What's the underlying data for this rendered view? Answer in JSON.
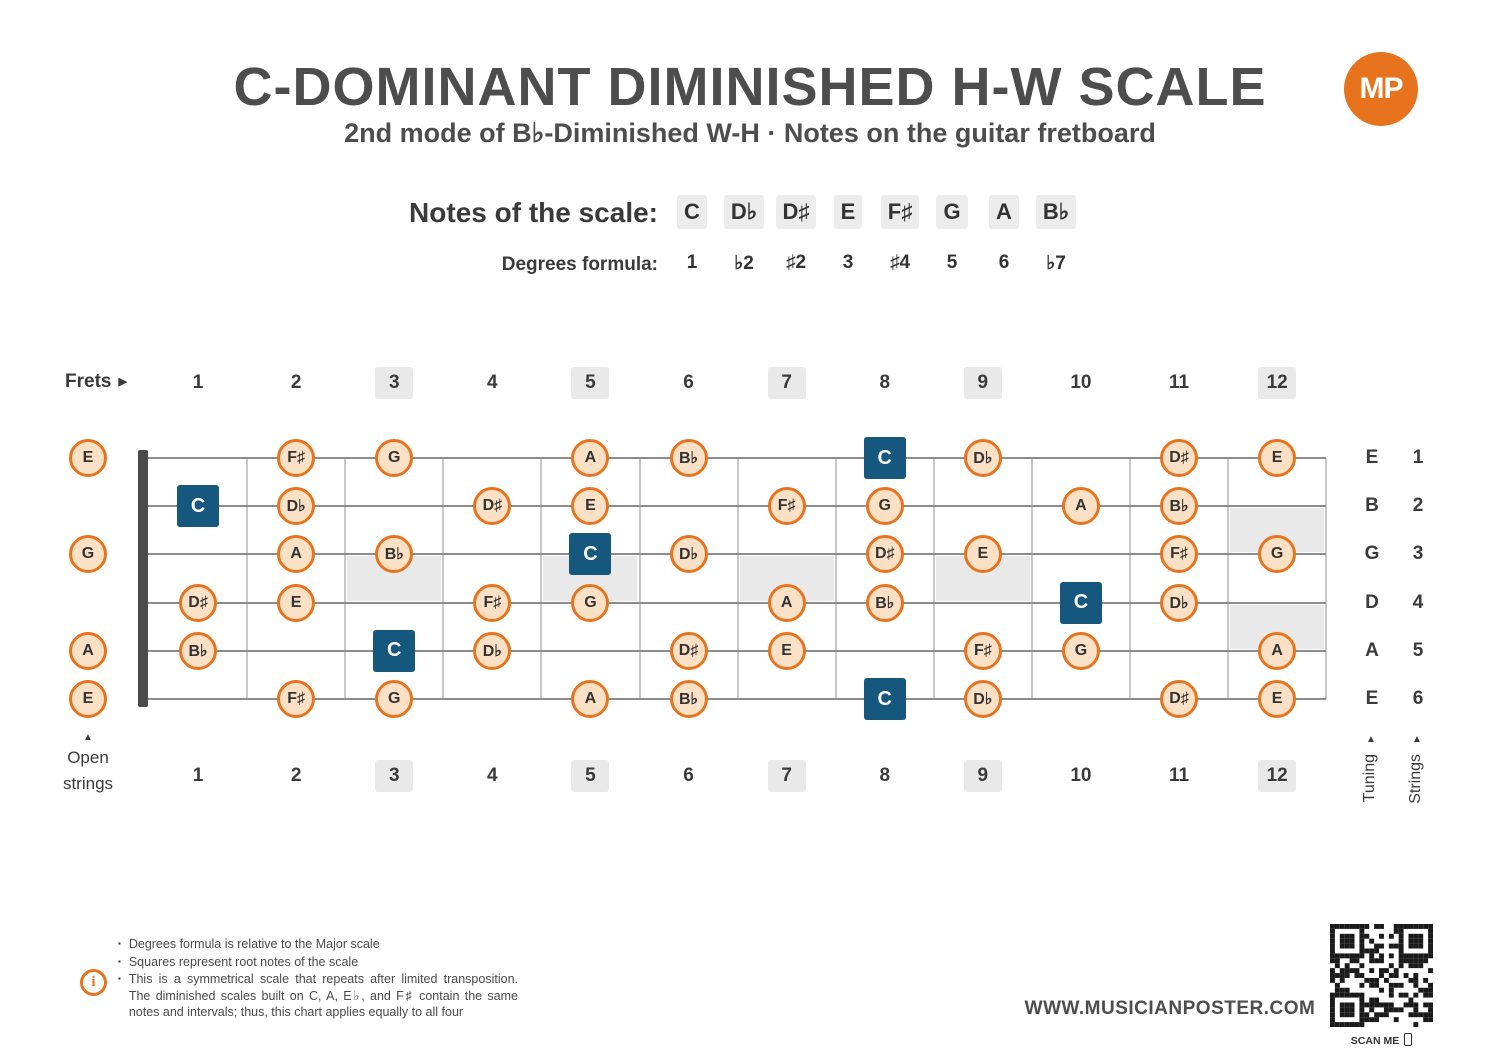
{
  "header": {
    "title": "C-DOMINANT DIMINISHED H-W SCALE",
    "subtitle": "2nd mode of B♭-Diminished W-H  ·  Notes on the guitar fretboard",
    "logo_text": "MP"
  },
  "scale": {
    "notes_label": "Notes of the scale:",
    "notes": [
      "C",
      "D♭",
      "D♯",
      "E",
      "F♯",
      "G",
      "A",
      "B♭"
    ],
    "degrees_label": "Degrees formula:",
    "degrees": [
      "1",
      "♭2",
      "♯2",
      "3",
      "♯4",
      "5",
      "6",
      "♭7"
    ]
  },
  "fretboard": {
    "frets_label": "Frets",
    "fret_numbers": [
      1,
      2,
      3,
      4,
      5,
      6,
      7,
      8,
      9,
      10,
      11,
      12
    ],
    "marker_frets": [
      3,
      5,
      7,
      9,
      12
    ],
    "open_label": "Open strings",
    "tuning_label": "Tuning",
    "strings_label": "Strings",
    "inlays": [
      {
        "fret": 3,
        "between": [
          3,
          4
        ]
      },
      {
        "fret": 5,
        "between": [
          3,
          4
        ]
      },
      {
        "fret": 7,
        "between": [
          3,
          4
        ]
      },
      {
        "fret": 9,
        "between": [
          3,
          4
        ]
      },
      {
        "fret": 12,
        "between": [
          2,
          3
        ]
      },
      {
        "fret": 12,
        "between": [
          4,
          5
        ]
      }
    ],
    "strings": [
      {
        "label": "E",
        "number": "1",
        "open": "E",
        "notes": [
          {
            "fret": 2,
            "note": "F♯"
          },
          {
            "fret": 3,
            "note": "G"
          },
          {
            "fret": 5,
            "note": "A"
          },
          {
            "fret": 6,
            "note": "B♭"
          },
          {
            "fret": 8,
            "note": "C",
            "root": true
          },
          {
            "fret": 9,
            "note": "D♭"
          },
          {
            "fret": 11,
            "note": "D♯"
          },
          {
            "fret": 12,
            "note": "E"
          }
        ]
      },
      {
        "label": "B",
        "number": "2",
        "open": null,
        "notes": [
          {
            "fret": 1,
            "note": "C",
            "root": true
          },
          {
            "fret": 2,
            "note": "D♭"
          },
          {
            "fret": 4,
            "note": "D♯"
          },
          {
            "fret": 5,
            "note": "E"
          },
          {
            "fret": 7,
            "note": "F♯"
          },
          {
            "fret": 8,
            "note": "G"
          },
          {
            "fret": 10,
            "note": "A"
          },
          {
            "fret": 11,
            "note": "B♭"
          }
        ]
      },
      {
        "label": "G",
        "number": "3",
        "open": "G",
        "notes": [
          {
            "fret": 2,
            "note": "A"
          },
          {
            "fret": 3,
            "note": "B♭"
          },
          {
            "fret": 5,
            "note": "C",
            "root": true
          },
          {
            "fret": 6,
            "note": "D♭"
          },
          {
            "fret": 8,
            "note": "D♯"
          },
          {
            "fret": 9,
            "note": "E"
          },
          {
            "fret": 11,
            "note": "F♯"
          },
          {
            "fret": 12,
            "note": "G"
          }
        ]
      },
      {
        "label": "D",
        "number": "4",
        "open": null,
        "notes": [
          {
            "fret": 1,
            "note": "D♯"
          },
          {
            "fret": 2,
            "note": "E"
          },
          {
            "fret": 4,
            "note": "F♯"
          },
          {
            "fret": 5,
            "note": "G"
          },
          {
            "fret": 7,
            "note": "A"
          },
          {
            "fret": 8,
            "note": "B♭"
          },
          {
            "fret": 10,
            "note": "C",
            "root": true
          },
          {
            "fret": 11,
            "note": "D♭"
          }
        ]
      },
      {
        "label": "A",
        "number": "5",
        "open": "A",
        "notes": [
          {
            "fret": 1,
            "note": "B♭"
          },
          {
            "fret": 3,
            "note": "C",
            "root": true
          },
          {
            "fret": 4,
            "note": "D♭"
          },
          {
            "fret": 6,
            "note": "D♯"
          },
          {
            "fret": 7,
            "note": "E"
          },
          {
            "fret": 9,
            "note": "F♯"
          },
          {
            "fret": 10,
            "note": "G"
          },
          {
            "fret": 12,
            "note": "A"
          }
        ]
      },
      {
        "label": "E",
        "number": "6",
        "open": "E",
        "notes": [
          {
            "fret": 2,
            "note": "F♯"
          },
          {
            "fret": 3,
            "note": "G"
          },
          {
            "fret": 5,
            "note": "A"
          },
          {
            "fret": 6,
            "note": "B♭"
          },
          {
            "fret": 8,
            "note": "C",
            "root": true
          },
          {
            "fret": 9,
            "note": "D♭"
          },
          {
            "fret": 11,
            "note": "D♯"
          },
          {
            "fret": 12,
            "note": "E"
          }
        ]
      }
    ]
  },
  "footer": {
    "info_glyph": "i",
    "notes": [
      "Degrees formula is relative to the Major scale",
      "Squares represent root notes of the scale",
      "This is a symmetrical scale that repeats after limited transposition. The diminished scales built on C, A, E♭, and F♯ contain the same notes and intervals; thus, this chart applies equally to all four"
    ],
    "website": "WWW.MUSICIANPOSTER.COM",
    "scan_label": "SCAN ME"
  },
  "colors": {
    "accent_orange": "#E8731E",
    "root_blue": "#15577D",
    "note_fill": "#FAE0C4",
    "marker_gray": "#E9E9E9"
  }
}
